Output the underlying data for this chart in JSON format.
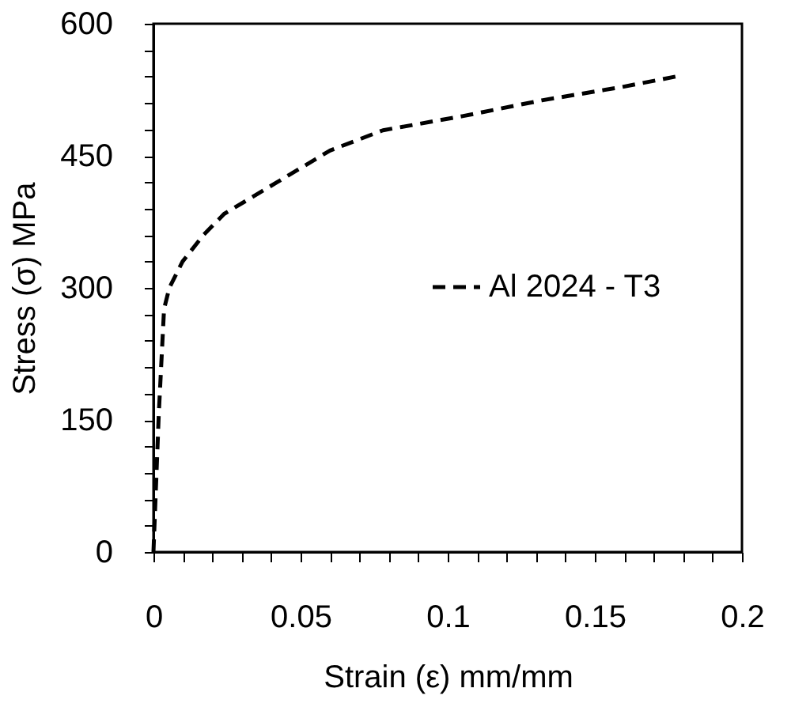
{
  "chart_data": {
    "type": "line",
    "xlabel": "Strain (ε) mm/mm",
    "ylabel": "Stress (σ) MPa",
    "xlim": [
      0,
      0.2
    ],
    "ylim": [
      0,
      600
    ],
    "xticks": [
      0,
      {
        "value": 0.01,
        "label": null
      },
      {
        "value": 0.02,
        "label": null
      },
      {
        "value": 0.03,
        "label": null
      },
      {
        "value": 0.04,
        "label": null
      },
      0.05,
      {
        "value": 0.06,
        "label": null
      },
      {
        "value": 0.07,
        "label": null
      },
      {
        "value": 0.08,
        "label": null
      },
      {
        "value": 0.09,
        "label": null
      },
      0.1,
      {
        "value": 0.11,
        "label": null
      },
      {
        "value": 0.12,
        "label": null
      },
      {
        "value": 0.13,
        "label": null
      },
      {
        "value": 0.14,
        "label": null
      },
      0.15,
      {
        "value": 0.16,
        "label": null
      },
      {
        "value": 0.17,
        "label": null
      },
      {
        "value": 0.18,
        "label": null
      },
      {
        "value": 0.19,
        "label": null
      },
      0.2
    ],
    "yticks": [
      0,
      {
        "value": 30,
        "label": null
      },
      {
        "value": 60,
        "label": null
      },
      {
        "value": 90,
        "label": null
      },
      {
        "value": 120,
        "label": null
      },
      150,
      {
        "value": 180,
        "label": null
      },
      {
        "value": 210,
        "label": null
      },
      {
        "value": 240,
        "label": null
      },
      {
        "value": 270,
        "label": null
      },
      300,
      {
        "value": 330,
        "label": null
      },
      {
        "value": 360,
        "label": null
      },
      {
        "value": 390,
        "label": null
      },
      {
        "value": 420,
        "label": null
      },
      450,
      {
        "value": 480,
        "label": null
      },
      {
        "value": 510,
        "label": null
      },
      {
        "value": 540,
        "label": null
      },
      {
        "value": 570,
        "label": null
      },
      600
    ],
    "x": [
      0,
      0.0018,
      0.0036,
      0.0054,
      0.0099,
      0.017,
      0.024,
      0.042,
      0.06,
      0.078,
      0.105,
      0.132,
      0.159,
      0.179
    ],
    "series": [
      {
        "name": "Al 2024 - T3",
        "color": "#000000",
        "values": [
          0,
          156,
          276,
          300,
          330,
          360,
          384,
          420,
          456,
          479,
          495,
          513,
          528,
          541
        ]
      }
    ],
    "line_style": "dashed",
    "marker": "none",
    "grid": false,
    "legend": "right"
  }
}
